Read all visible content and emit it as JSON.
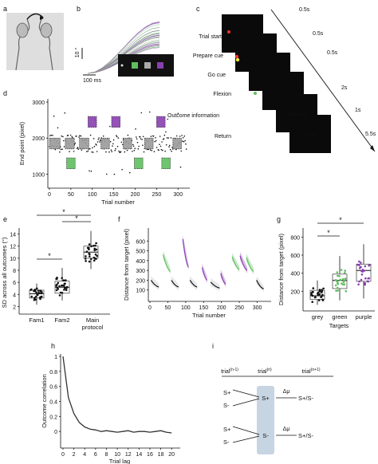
{
  "panel_letters": [
    "a",
    "b",
    "c",
    "d",
    "e",
    "f",
    "g",
    "h",
    "i"
  ],
  "colors": {
    "grey": "#7a7a7a",
    "green": "#5fbf5f",
    "purple": "#8a3fb0",
    "black": "#111111"
  },
  "panel_b": {
    "scale_y": "10 °",
    "scale_x": "100 ms"
  },
  "panel_c": {
    "stages": [
      "Trial start",
      "Prepare cue",
      "Go cue",
      "Flexion",
      "Outcome information",
      "Return"
    ],
    "times": [
      "0.5s",
      "0.5s",
      "0.5s",
      "2s",
      "1s",
      "5.5s"
    ],
    "screen_texts": [
      "Well done",
      "Back"
    ]
  },
  "panel_i": {
    "headers": [
      "trial(n-1)",
      "trial(n)",
      "trial(n+1)"
    ],
    "rows_left": [
      "S+",
      "S-",
      "S+",
      "S-"
    ],
    "mid": [
      "S+",
      "S-"
    ],
    "delta": "Δμ",
    "right": [
      "S+/S-",
      "S+/S-"
    ]
  },
  "chart_data": [
    {
      "panel": "d",
      "type": "scatter",
      "xlabel": "Trial number",
      "ylabel": "End point (pixel)",
      "xlim": [
        0,
        320
      ],
      "ylim": [
        700,
        3000
      ],
      "xticks": [
        "0",
        "50",
        "100",
        "150",
        "200",
        "250",
        "300"
      ],
      "yticks": [
        "1000",
        "2000",
        "3000"
      ],
      "blocks": [
        {
          "target": "grey",
          "x": [
            0,
            25
          ],
          "y": [
            1700,
            2000
          ]
        },
        {
          "target": "grey",
          "x": [
            37,
            58
          ],
          "y": [
            1700,
            2000
          ]
        },
        {
          "target": "green",
          "x": [
            40,
            60
          ],
          "y": [
            1150,
            1450
          ]
        },
        {
          "target": "grey",
          "x": [
            70,
            92
          ],
          "y": [
            1700,
            2000
          ]
        },
        {
          "target": "purple",
          "x": [
            90,
            110
          ],
          "y": [
            2300,
            2600
          ]
        },
        {
          "target": "grey",
          "x": [
            120,
            140
          ],
          "y": [
            1700,
            2000
          ]
        },
        {
          "target": "purple",
          "x": [
            145,
            165
          ],
          "y": [
            2300,
            2600
          ]
        },
        {
          "target": "grey",
          "x": [
            172,
            192
          ],
          "y": [
            1700,
            2000
          ]
        },
        {
          "target": "green",
          "x": [
            198,
            218
          ],
          "y": [
            1150,
            1450
          ]
        },
        {
          "target": "grey",
          "x": [
            222,
            242
          ],
          "y": [
            1700,
            2000
          ]
        },
        {
          "target": "purple",
          "x": [
            250,
            270
          ],
          "y": [
            2300,
            2600
          ]
        },
        {
          "target": "green",
          "x": [
            262,
            282
          ],
          "y": [
            1150,
            1450
          ]
        },
        {
          "target": "grey",
          "x": [
            288,
            308
          ],
          "y": [
            1700,
            2000
          ]
        }
      ]
    },
    {
      "panel": "e",
      "type": "box",
      "ylabel": "SD across all outcomes (°)",
      "ylim": [
        1,
        15
      ],
      "yticks": [
        "2",
        "4",
        "6",
        "8",
        "10",
        "12",
        "14"
      ],
      "categories": [
        "Fam1",
        "Fam2",
        "Main protocol"
      ],
      "boxes": [
        {
          "min": 2.3,
          "q1": 3.4,
          "median": 4.1,
          "q3": 4.7,
          "max": 5.8
        },
        {
          "min": 3.0,
          "q1": 4.2,
          "median": 5.2,
          "q3": 6.2,
          "max": 8.4
        },
        {
          "min": 8.2,
          "q1": 10.0,
          "median": 11.0,
          "q3": 12.0,
          "max": 14.5
        }
      ],
      "significance": [
        "*",
        "*",
        "*"
      ]
    },
    {
      "panel": "f",
      "type": "line",
      "xlabel": "Trial number",
      "ylabel": "Distance from target (pixel)",
      "xlim": [
        0,
        330
      ],
      "ylim": [
        0,
        700
      ],
      "xticks": [
        "0",
        "50",
        "100",
        "150",
        "200",
        "250",
        "300"
      ],
      "yticks": [
        "100",
        "200",
        "300",
        "400",
        "500",
        "600"
      ],
      "segments": [
        {
          "target": "black",
          "x": [
            3,
            25
          ],
          "y": [
            200,
            130
          ]
        },
        {
          "target": "green",
          "x": [
            37,
            57
          ],
          "y": [
            460,
            290
          ]
        },
        {
          "target": "black",
          "x": [
            60,
            80
          ],
          "y": [
            200,
            130
          ]
        },
        {
          "target": "purple",
          "x": [
            92,
            108
          ],
          "y": [
            620,
            330
          ]
        },
        {
          "target": "black",
          "x": [
            112,
            132
          ],
          "y": [
            200,
            130
          ]
        },
        {
          "target": "purple",
          "x": [
            146,
            160
          ],
          "y": [
            330,
            200
          ]
        },
        {
          "target": "black",
          "x": [
            170,
            195
          ],
          "y": [
            180,
            120
          ]
        },
        {
          "target": "purple",
          "x": [
            198,
            212
          ],
          "y": [
            270,
            160
          ]
        },
        {
          "target": "green",
          "x": [
            230,
            250
          ],
          "y": [
            440,
            310
          ]
        },
        {
          "target": "purple",
          "x": [
            252,
            272
          ],
          "y": [
            450,
            300
          ]
        },
        {
          "target": "green",
          "x": [
            270,
            290
          ],
          "y": [
            430,
            290
          ]
        },
        {
          "target": "black",
          "x": [
            298,
            318
          ],
          "y": [
            200,
            110
          ]
        }
      ]
    },
    {
      "panel": "g",
      "type": "box",
      "xlabel": "Targets",
      "ylabel": "Distance from target (pixel)",
      "ylim": [
        0,
        900
      ],
      "yticks": [
        "200",
        "400",
        "600",
        "800"
      ],
      "categories": [
        "grey",
        "green",
        "purple"
      ],
      "boxes": [
        {
          "min": 50,
          "q1": 110,
          "median": 150,
          "q3": 210,
          "max": 320
        },
        {
          "min": 100,
          "q1": 230,
          "median": 320,
          "q3": 390,
          "max": 590
        },
        {
          "min": 120,
          "q1": 310,
          "median": 430,
          "q3": 500,
          "max": 720
        }
      ],
      "significance": [
        "*",
        "*"
      ]
    },
    {
      "panel": "h",
      "type": "line",
      "xlabel": "Trial lag",
      "ylabel": "Outcome correlation",
      "xlim": [
        0,
        21
      ],
      "ylim": [
        -0.2,
        1
      ],
      "xticks": [
        "0",
        "2",
        "4",
        "6",
        "8",
        "10",
        "12",
        "14",
        "16",
        "18",
        "20"
      ],
      "yticks": [
        "0",
        "0.2",
        "0.4",
        "0.6",
        "0.8",
        "1"
      ],
      "x": [
        0,
        1,
        2,
        3,
        4,
        5,
        6,
        7,
        8,
        9,
        10,
        11,
        12,
        13,
        14,
        15,
        16,
        17,
        18,
        19,
        20
      ],
      "y": [
        1.0,
        0.45,
        0.24,
        0.12,
        0.06,
        0.03,
        0.02,
        0.0,
        0.01,
        0.0,
        -0.01,
        0.0,
        0.01,
        -0.01,
        0.0,
        0.0,
        -0.01,
        0.0,
        0.01,
        -0.01,
        -0.02
      ]
    }
  ]
}
